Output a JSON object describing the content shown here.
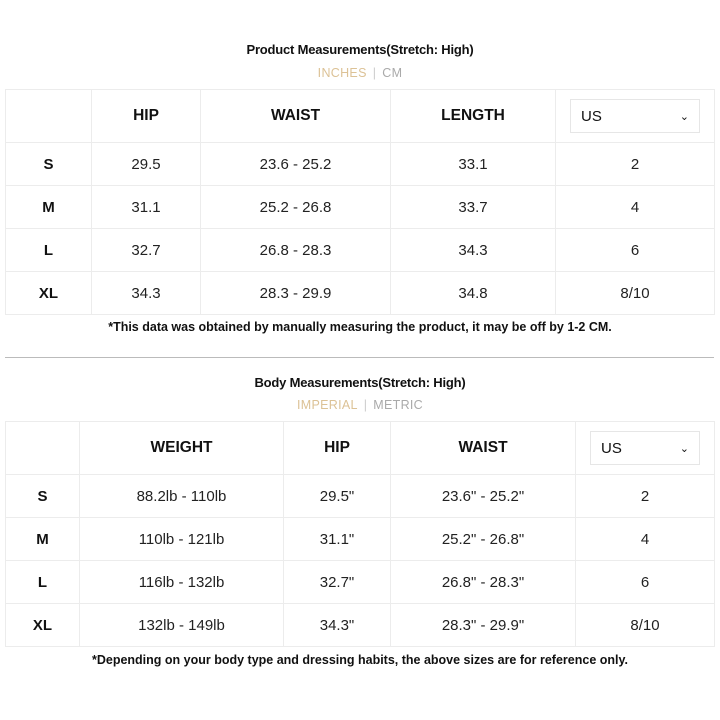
{
  "product": {
    "title": "Product Measurements(Stretch: High)",
    "unit_active": "INCHES",
    "unit_inactive": "CM",
    "headers": [
      "HIP",
      "WAIST",
      "LENGTH"
    ],
    "region": "US",
    "rows": [
      [
        "S",
        "29.5",
        "23.6 - 25.2",
        "33.1",
        "2"
      ],
      [
        "M",
        "31.1",
        "25.2 - 26.8",
        "33.7",
        "4"
      ],
      [
        "L",
        "32.7",
        "26.8 - 28.3",
        "34.3",
        "6"
      ],
      [
        "XL",
        "34.3",
        "28.3 - 29.9",
        "34.8",
        "8/10"
      ]
    ],
    "note": "*This data was obtained by manually measuring the product, it may be off by 1-2 CM."
  },
  "body": {
    "title": "Body Measurements(Stretch: High)",
    "unit_active": "IMPERIAL",
    "unit_inactive": "METRIC",
    "headers": [
      "WEIGHT",
      "HIP",
      "WAIST"
    ],
    "region": "US",
    "rows": [
      [
        "S",
        "88.2lb - 110lb",
        "29.5\"",
        "23.6\" - 25.2\"",
        "2"
      ],
      [
        "M",
        "110lb - 121lb",
        "31.1\"",
        "25.2\" - 26.8\"",
        "4"
      ],
      [
        "L",
        "116lb - 132lb",
        "32.7\"",
        "26.8\" - 28.3\"",
        "6"
      ],
      [
        "XL",
        "132lb - 149lb",
        "34.3\"",
        "28.3\" - 29.9\"",
        "8/10"
      ]
    ],
    "note": "*Depending on your body type and dressing habits, the above sizes are for reference only."
  },
  "colors": {
    "unit_active": "#dcc296",
    "unit_inactive": "#aaaaaa"
  }
}
